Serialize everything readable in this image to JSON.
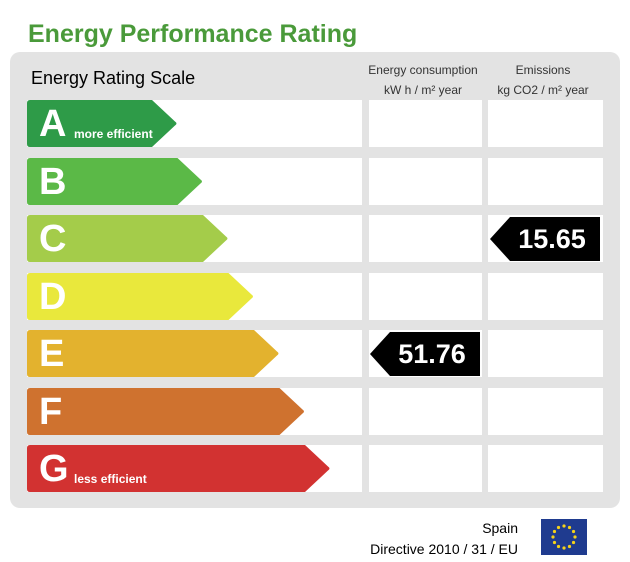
{
  "title": "Energy Performance Rating",
  "scale_label": "Energy Rating Scale",
  "columns": {
    "consumption": {
      "line1": "Energy consumption",
      "line2": "kW h / m² year"
    },
    "emissions": {
      "line1": "Emissions",
      "line2": "kg CO2 / m² year"
    }
  },
  "chart_data": {
    "type": "table",
    "bands": [
      {
        "letter": "A",
        "note": "more efficient",
        "color": "#2e9b48"
      },
      {
        "letter": "B",
        "note": "",
        "color": "#5bb947"
      },
      {
        "letter": "C",
        "note": "",
        "color": "#a4cc4a"
      },
      {
        "letter": "D",
        "note": "",
        "color": "#e9e83c"
      },
      {
        "letter": "E",
        "note": "",
        "color": "#e3b22e"
      },
      {
        "letter": "F",
        "note": "",
        "color": "#cf722f"
      },
      {
        "letter": "G",
        "note": "less efficient",
        "color": "#d23231"
      }
    ],
    "consumption": {
      "value": "51.76",
      "band": "E"
    },
    "emissions": {
      "value": "15.65",
      "band": "C"
    }
  },
  "footer": {
    "country": "Spain",
    "directive": "Directive 2010 / 31 / EU"
  },
  "flag_icon": "eu-flag-icon"
}
